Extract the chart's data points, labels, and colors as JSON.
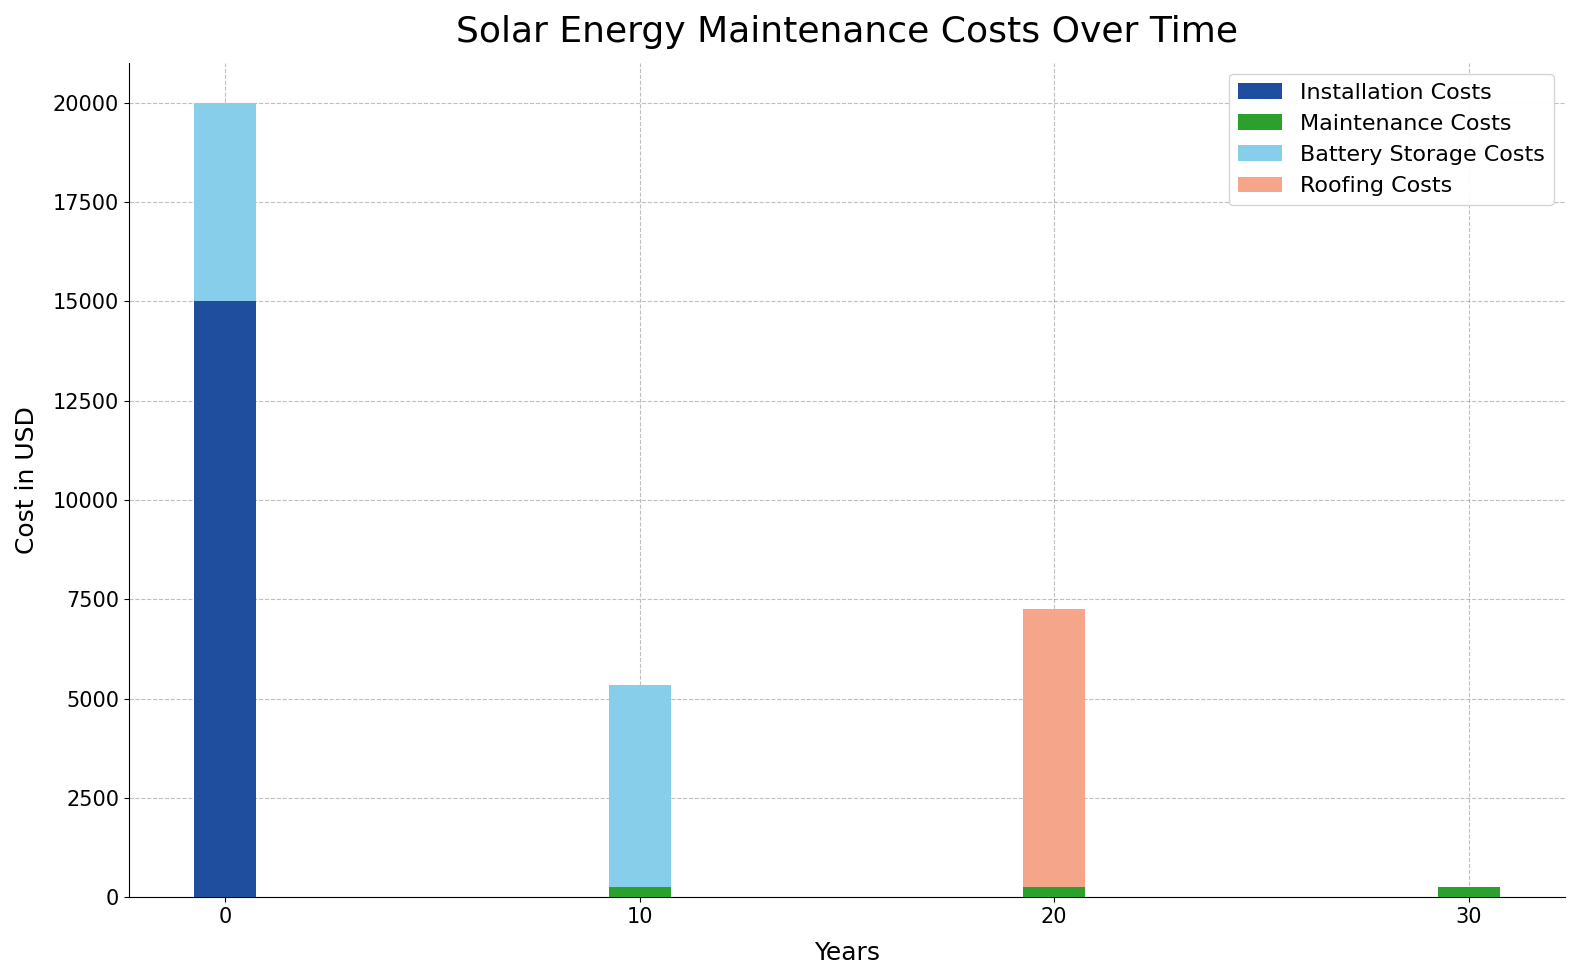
{
  "title": "Solar Energy Maintenance Costs Over Time",
  "xlabel": "Years",
  "ylabel": "Cost in USD",
  "years": [
    0,
    10,
    20,
    30
  ],
  "installation_costs": [
    15000,
    0,
    0,
    0
  ],
  "maintenance_costs": [
    0,
    250,
    250,
    250
  ],
  "battery_storage_costs": [
    5000,
    5100,
    0,
    0
  ],
  "roofing_costs": [
    0,
    0,
    7000,
    0
  ],
  "colors": {
    "installation": "#1f4e9e",
    "maintenance": "#2ca02c",
    "battery": "#87ceeb",
    "roofing": "#f4a58a"
  },
  "legend_labels": [
    "Installation Costs",
    "Maintenance Costs",
    "Battery Storage Costs",
    "Roofing Costs"
  ],
  "ylim": [
    0,
    21000
  ],
  "yticks": [
    0,
    2500,
    5000,
    7500,
    10000,
    12500,
    15000,
    17500,
    20000
  ],
  "bar_width": 0.15,
  "title_fontsize": 26,
  "axis_label_fontsize": 18,
  "tick_fontsize": 15,
  "legend_fontsize": 16
}
